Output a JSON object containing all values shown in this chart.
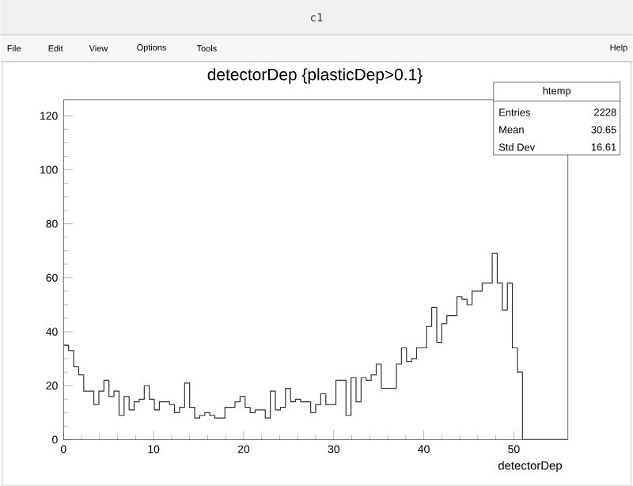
{
  "chart_data": {
    "type": "histogram",
    "title": "detectorDep {plasticDep>0.1}",
    "xlabel": "detectorDep",
    "bins": [
      0,
      0.56,
      1.12,
      1.68,
      2.24,
      2.8,
      3.36,
      3.92,
      4.48,
      5.04,
      5.6,
      6.16,
      6.72,
      7.28,
      7.84,
      8.4,
      8.96,
      9.52,
      10.08,
      10.64,
      11.2,
      11.76,
      12.32,
      12.88,
      13.44,
      14,
      14.56,
      15.12,
      15.68,
      16.24,
      16.8,
      17.36,
      17.92,
      18.48,
      19.04,
      19.6,
      20.16,
      20.72,
      21.28,
      21.84,
      22.4,
      22.96,
      23.52,
      24.08,
      24.64,
      25.2,
      25.76,
      26.32,
      26.88,
      27.44,
      28,
      28.56,
      29.12,
      29.68,
      30.24,
      30.8,
      31.36,
      31.92,
      32.48,
      33.04,
      33.6,
      34.16,
      34.72,
      35.28,
      35.84,
      36.4,
      36.96,
      37.52,
      38.08,
      38.64,
      39.2,
      39.76,
      40.32,
      40.88,
      41.44,
      42,
      42.56,
      43.12,
      43.68,
      44.24,
      44.8,
      45.36,
      45.92,
      46.48,
      47.04,
      47.6,
      48.16,
      48.72,
      49.28,
      49.84,
      50.4,
      50.96,
      51.52,
      52.08,
      52.64,
      53.2,
      53.76,
      54.32,
      54.88,
      55.44,
      56
    ],
    "values": [
      35,
      33,
      27,
      24,
      18,
      18,
      13,
      18,
      22,
      16,
      18,
      9,
      16,
      11,
      14,
      15,
      20,
      15,
      11,
      14,
      14,
      13,
      10,
      12,
      21,
      12,
      8,
      9,
      10,
      9,
      8,
      8,
      12,
      12,
      14,
      16,
      12,
      10,
      11,
      11,
      8,
      18,
      11,
      12,
      19,
      14,
      15,
      14,
      14,
      10,
      13,
      17,
      13,
      13,
      22,
      22,
      9,
      23,
      14,
      23,
      22,
      24,
      28,
      19,
      19,
      19,
      28,
      34,
      29,
      30,
      34,
      34,
      42,
      49,
      36,
      43,
      46,
      46,
      53,
      52,
      50,
      55,
      55,
      58,
      58,
      69,
      58,
      48,
      58,
      34,
      25,
      0,
      0,
      0,
      0,
      0,
      0,
      0,
      0,
      0
    ],
    "color": "#303030",
    "xlim": [
      0,
      56
    ],
    "ylim": [
      0,
      126
    ],
    "xticks": [
      0,
      10,
      20,
      30,
      40,
      50
    ],
    "yticks": [
      0,
      20,
      40,
      60,
      80,
      100,
      120
    ],
    "annotations": [
      "c1",
      "File",
      "Edit",
      "View",
      "Options",
      "Tools",
      "Help",
      "htemp",
      "Entries",
      "2228",
      "Mean",
      "30.65",
      "Std Dev",
      "16.61"
    ]
  }
}
